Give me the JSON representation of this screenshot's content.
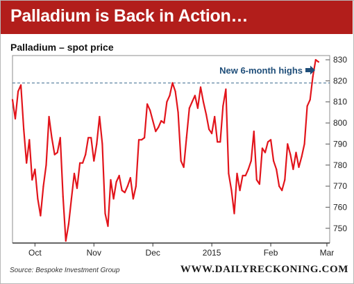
{
  "header": {
    "title": "Palladium is Back in Action…",
    "banner_color": "#b21e1b"
  },
  "footer": {
    "source": "Source: Bespoke Investment Group",
    "brand": "WWW.DAILYRECKONING.COM"
  },
  "chart_data": {
    "type": "line",
    "title": "Palladium – spot price",
    "xlabel": "",
    "ylabel": "",
    "x_tick_labels": [
      "Oct",
      "Nov",
      "Dec",
      "2015",
      "Feb",
      "Mar"
    ],
    "x_tick_positions": [
      8,
      29,
      50,
      71,
      92,
      112
    ],
    "xlim": [
      0,
      113
    ],
    "y_ticks": [
      750,
      760,
      770,
      780,
      790,
      800,
      810,
      820,
      830
    ],
    "ylim": [
      743,
      832
    ],
    "y_axis_side": "right",
    "grid": false,
    "line_color": "#e2141b",
    "reference_line": {
      "value": 819,
      "style": "dashed",
      "color": "#3f6e91"
    },
    "annotation": {
      "text": "New 6-month highs",
      "color": "#1f4e79",
      "arrow": "right-arrow-icon"
    },
    "series": [
      {
        "name": "",
        "values": [
          811,
          802,
          815,
          818,
          797,
          781,
          792,
          773,
          778,
          764,
          756,
          770,
          780,
          803,
          793,
          785,
          786,
          793,
          765,
          744,
          752,
          764,
          776,
          769,
          781,
          781,
          785,
          793,
          793,
          782,
          790,
          803,
          790,
          757,
          751,
          773,
          764,
          772,
          775,
          768,
          767,
          770,
          774,
          764,
          770,
          792,
          792,
          793,
          809,
          806,
          801,
          796,
          798,
          801,
          800,
          810,
          813,
          819,
          815,
          805,
          782,
          779,
          793,
          807,
          810,
          813,
          807,
          817,
          810,
          804,
          797,
          795,
          803,
          791,
          791,
          808,
          816,
          776,
          768,
          757,
          776,
          768,
          775,
          775,
          778,
          782,
          796,
          773,
          771,
          788,
          786,
          791,
          792,
          782,
          778,
          770,
          768,
          773,
          790,
          785,
          778,
          786,
          779,
          784,
          790,
          808,
          811,
          822,
          830,
          829
        ]
      }
    ]
  }
}
